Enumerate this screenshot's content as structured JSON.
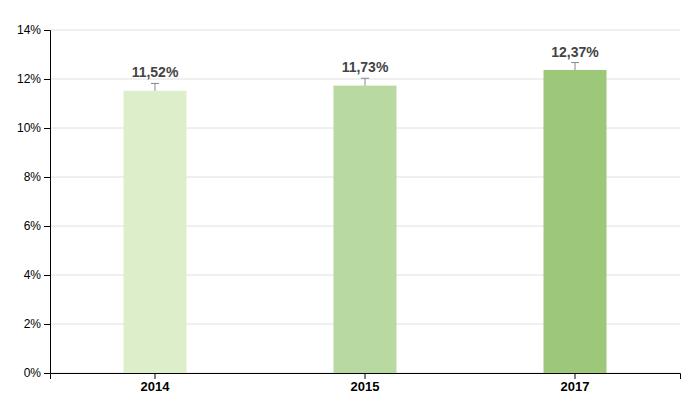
{
  "chart_data": {
    "type": "bar",
    "categories": [
      "2014",
      "2015",
      "2017"
    ],
    "values": [
      0.1152,
      0.1173,
      0.1237
    ],
    "value_labels": [
      "11,52%",
      "11,73%",
      "12,37%"
    ],
    "data_labels": true,
    "errors": [
      0.003,
      0.003,
      0.003
    ],
    "colors": [
      "#ddeecb",
      "#b8d9a0",
      "#9dc87a"
    ],
    "ylim": [
      0,
      0.14
    ],
    "yticks": [
      {
        "value": 0,
        "label": "0%"
      },
      {
        "value": 0.02,
        "label": "2%"
      },
      {
        "value": 0.04,
        "label": "4%"
      },
      {
        "value": 0.06,
        "label": "6%"
      },
      {
        "value": 0.08,
        "label": "8%"
      },
      {
        "value": 0.1,
        "label": "10%"
      },
      {
        "value": 0.12,
        "label": "12%"
      },
      {
        "value": 0.14,
        "label": "14%"
      }
    ],
    "grid": true
  }
}
